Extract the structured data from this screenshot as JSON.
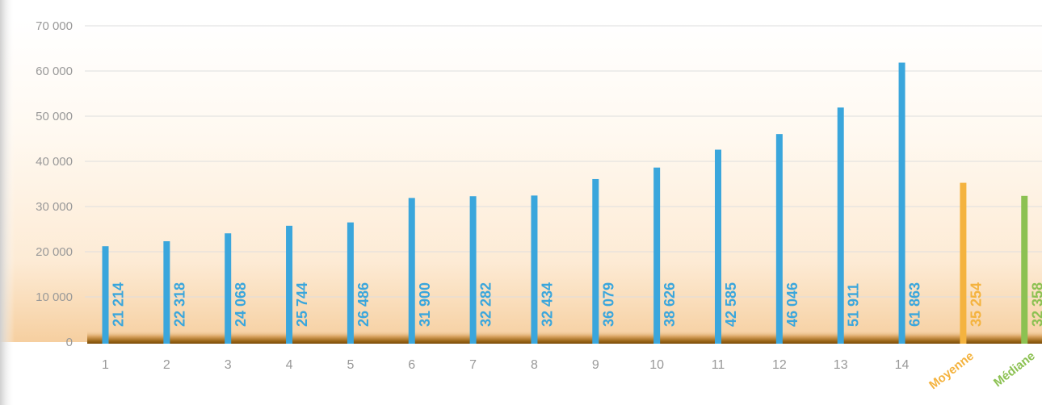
{
  "chart_data": {
    "type": "bar",
    "categories": [
      "1",
      "2",
      "3",
      "4",
      "5",
      "6",
      "7",
      "8",
      "9",
      "10",
      "11",
      "12",
      "13",
      "14",
      "Moyenne",
      "Médiane"
    ],
    "values": [
      21214,
      22318,
      24068,
      25744,
      26486,
      31900,
      32282,
      32434,
      36079,
      38626,
      42585,
      46046,
      51911,
      61863,
      35254,
      32358
    ],
    "data_labels": [
      "21 214",
      "22 318",
      "24 068",
      "25 744",
      "26 486",
      "31 900",
      "32 282",
      "32 434",
      "36 079",
      "38 626",
      "42 585",
      "46 046",
      "51 911",
      "61 863",
      "35 254",
      "32 358"
    ],
    "yticks": [
      0,
      10000,
      20000,
      30000,
      40000,
      50000,
      60000,
      70000
    ],
    "ytick_labels": [
      "0",
      "10 000",
      "20 000",
      "30 000",
      "40 000",
      "50 000",
      "60 000",
      "70 000"
    ],
    "ylim": [
      0,
      70000
    ],
    "grid": true,
    "title": "",
    "xlabel": "",
    "ylabel": "",
    "colors": {
      "bars": "#3aa6dc",
      "moyenne": "#f4b33f",
      "mediane": "#8cc152",
      "tick_text": "#999999",
      "grid": "#dedede",
      "baseline": "#8a5a10"
    }
  }
}
